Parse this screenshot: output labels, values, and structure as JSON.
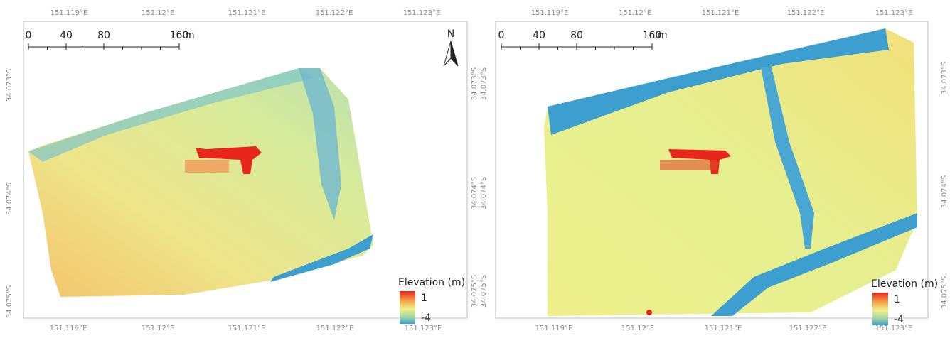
{
  "panels": [
    {
      "top_labels": [
        "151.119°E",
        "151.12°E",
        "151.121°E",
        "151.122°E",
        "151.123°E"
      ],
      "bottom_labels": [
        "151.119°E",
        "151.12°E",
        "151.121°E",
        "151.122°E",
        "151.123°E"
      ],
      "left_labels": [
        "34.073°S",
        "34.074°S",
        "34.075°S"
      ],
      "right_labels": [
        "34.073°S",
        "34.074°S",
        "34.075°S"
      ],
      "scale_bar": {
        "ticks": [
          0,
          40,
          80,
          160
        ],
        "unit": "m"
      },
      "north_arrow": "N",
      "legend": {
        "title": "Elevation (m)",
        "max": 1,
        "min": -4
      }
    },
    {
      "top_labels": [
        "151.119°E",
        "151.12°E",
        "151.121°E",
        "151.122°E",
        "151.123°E"
      ],
      "bottom_labels": [
        "151.119°E",
        "151.12°E",
        "151.121°E",
        "151.122°E",
        "151.123°E"
      ],
      "left_labels": [
        "34.073°S",
        "34.074°S",
        "34.075°S"
      ],
      "right_labels": [
        "34.073°S",
        "34.074°S",
        "34.075°S"
      ],
      "scale_bar": {
        "ticks": [
          0,
          40,
          80,
          160
        ],
        "unit": "m"
      },
      "legend": {
        "title": "Elevation (m)",
        "max": 1,
        "min": -4
      }
    }
  ]
}
